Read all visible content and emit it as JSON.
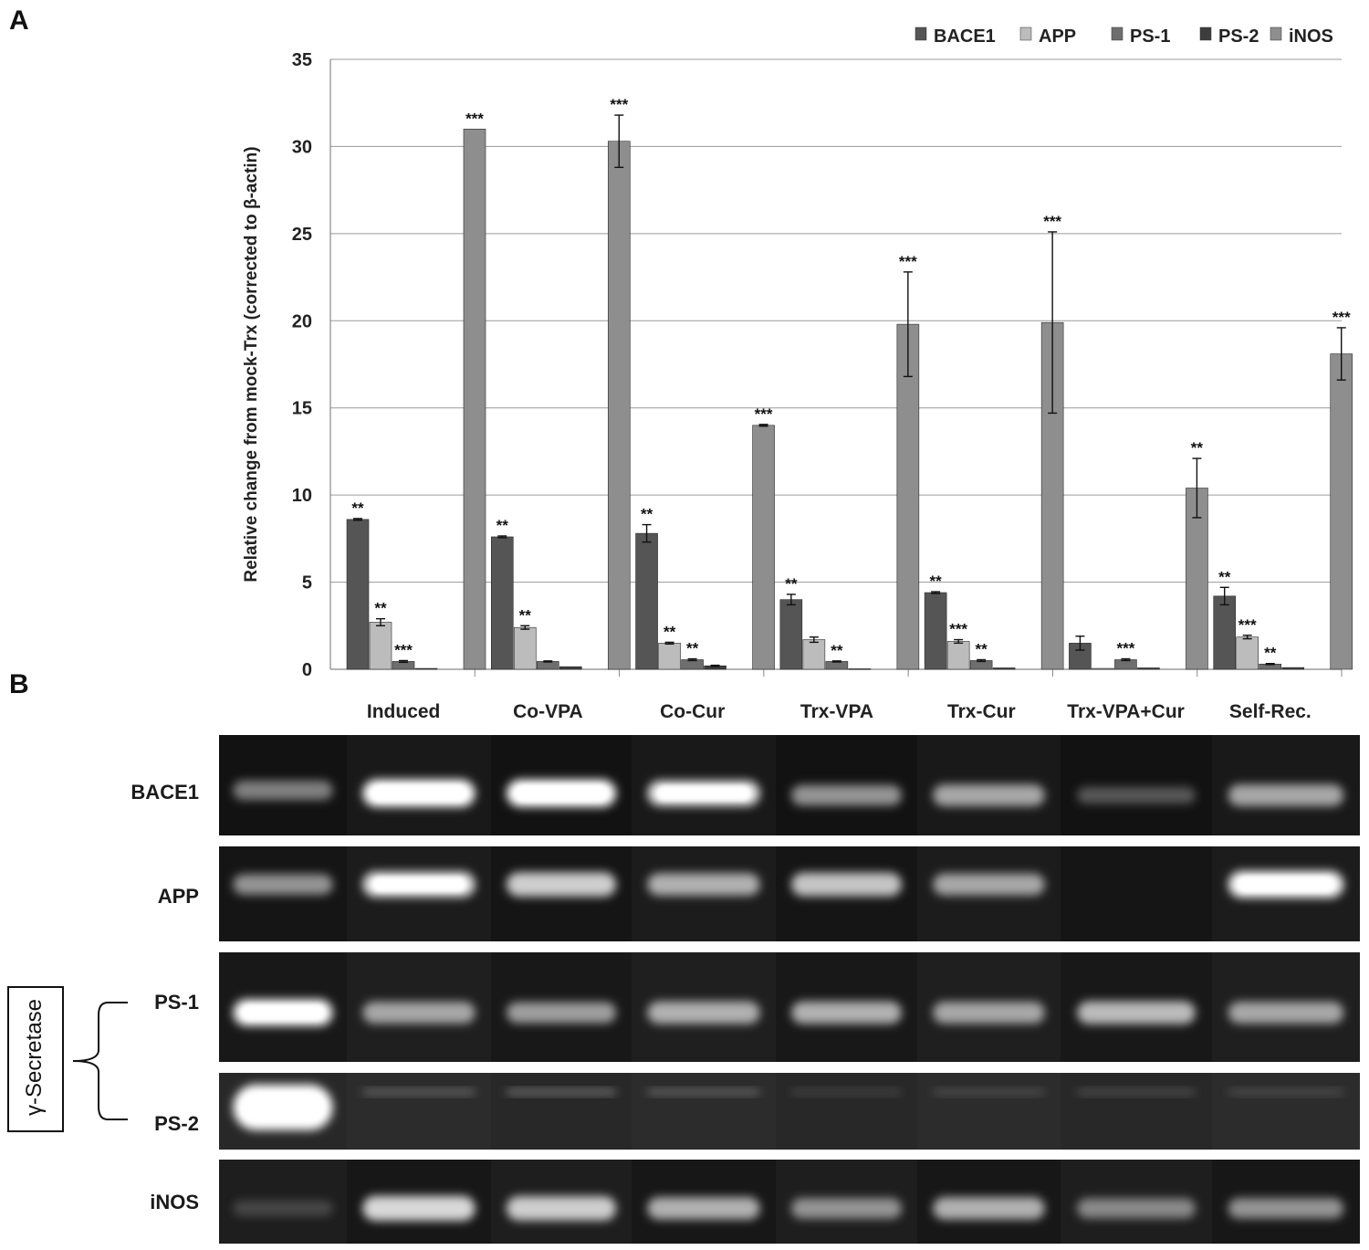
{
  "panel_a_label": "A",
  "panel_b_label": "B",
  "chart_data": {
    "type": "bar",
    "title": "",
    "xlabel": "",
    "ylabel": "Relative change from mock-Trx  (corrected to β-actin)",
    "ylim": [
      0,
      35
    ],
    "yticks": [
      0,
      5,
      10,
      15,
      20,
      25,
      30,
      35
    ],
    "grid": true,
    "legend_position": "top-right",
    "categories": [
      "Induced",
      "Co-VPA",
      "Co-Cur",
      "Trx-VPA",
      "Trx-Cur",
      "Trx-VPA+Cur",
      "Self-Rec."
    ],
    "series": [
      {
        "name": "BACE1",
        "color": "#555555",
        "values": [
          8.6,
          7.6,
          7.8,
          4.0,
          4.4,
          1.5,
          4.2
        ],
        "errors": [
          0.05,
          0.05,
          0.5,
          0.3,
          0.05,
          0.4,
          0.5
        ],
        "significance": [
          "**",
          "**",
          "**",
          "**",
          "**",
          "",
          "**"
        ]
      },
      {
        "name": "APP",
        "color": "#bcbcbc",
        "values": [
          2.7,
          2.4,
          1.5,
          1.7,
          1.6,
          0.05,
          1.85
        ],
        "errors": [
          0.2,
          0.1,
          0.05,
          0.15,
          0.1,
          0.0,
          0.1
        ],
        "significance": [
          "**",
          "**",
          "**",
          "",
          "***",
          "",
          "***"
        ]
      },
      {
        "name": "PS-1",
        "color": "#6e6e6e",
        "values": [
          0.45,
          0.45,
          0.55,
          0.45,
          0.5,
          0.55,
          0.3
        ],
        "errors": [
          0.05,
          0.03,
          0.05,
          0.03,
          0.05,
          0.05,
          0.03
        ],
        "significance": [
          "***",
          "",
          "**",
          "**",
          "**",
          "***",
          "**"
        ]
      },
      {
        "name": "PS-2",
        "color": "#3d3d3d",
        "values": [
          0.05,
          0.15,
          0.2,
          0.03,
          0.08,
          0.08,
          0.1
        ],
        "errors": [
          0.0,
          0.0,
          0.03,
          0.0,
          0.0,
          0.0,
          0.0
        ],
        "significance": [
          "",
          "",
          "",
          "",
          "",
          "",
          ""
        ]
      },
      {
        "name": "iNOS",
        "color": "#8e8e8e",
        "values": [
          31.0,
          30.3,
          14.0,
          19.8,
          19.9,
          10.4,
          18.1
        ],
        "errors": [
          0.0,
          1.5,
          0.05,
          3.0,
          5.2,
          1.7,
          1.5
        ],
        "significance": [
          "***",
          "***",
          "***",
          "***",
          "***",
          "**",
          "***"
        ]
      }
    ]
  },
  "gel": {
    "rows": [
      "BACE1",
      "APP",
      "PS-1",
      "PS-2",
      "iNOS"
    ],
    "group_label": "γ-Secretase",
    "bands": [
      [
        0.35,
        1.0,
        1.0,
        0.85,
        0.45,
        0.55,
        0.15,
        0.55
      ],
      [
        0.45,
        0.85,
        0.75,
        0.6,
        0.7,
        0.55,
        0.0,
        0.95
      ],
      [
        0.95,
        0.55,
        0.5,
        0.6,
        0.6,
        0.55,
        0.65,
        0.55
      ],
      [
        1.0,
        0.25,
        0.3,
        0.25,
        0.05,
        0.12,
        0.12,
        0.12
      ],
      [
        0.05,
        0.8,
        0.75,
        0.6,
        0.45,
        0.6,
        0.4,
        0.45
      ]
    ]
  }
}
